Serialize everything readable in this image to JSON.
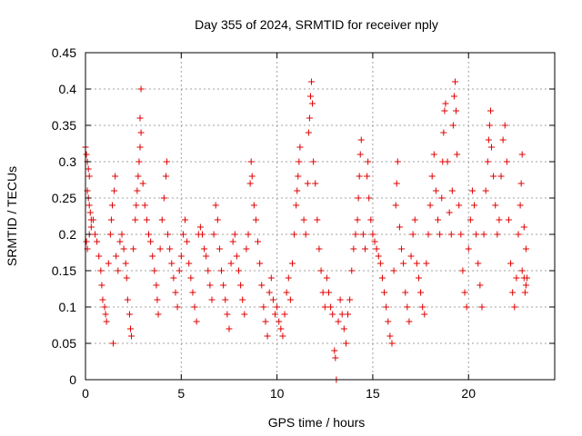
{
  "chart_data": {
    "type": "scatter",
    "title": "Day 355 of 2024, SRMTID for receiver nply",
    "xlabel": "GPS time / hours",
    "ylabel": "SRMTID / TECUs",
    "xlim": [
      0,
      24.5
    ],
    "ylim": [
      0,
      0.45
    ],
    "xticks": [
      0,
      5,
      10,
      15,
      20
    ],
    "xtick_labels": [
      "0",
      "5",
      "10",
      "15",
      "20"
    ],
    "yticks": [
      0,
      0.05,
      0.1,
      0.15,
      0.2,
      0.25,
      0.3,
      0.35,
      0.4,
      0.45
    ],
    "ytick_labels": [
      "0",
      "0.05",
      "0.1",
      "0.15",
      "0.2",
      "0.25",
      "0.3",
      "0.35",
      "0.4",
      "0.45"
    ],
    "grid": true,
    "legend": "none",
    "colors": {
      "marker": "#e00000",
      "grid": "#a0a0a0",
      "axis": "#000000"
    },
    "marker": "plus",
    "series": [
      {
        "name": "SRMTID",
        "points": [
          [
            0.0,
            0.32
          ],
          [
            0.05,
            0.31
          ],
          [
            0.1,
            0.3
          ],
          [
            0.15,
            0.29
          ],
          [
            0.2,
            0.28
          ],
          [
            0.1,
            0.26
          ],
          [
            0.15,
            0.25
          ],
          [
            0.2,
            0.24
          ],
          [
            0.25,
            0.23
          ],
          [
            0.3,
            0.22
          ],
          [
            0.05,
            0.19
          ],
          [
            0.1,
            0.18
          ],
          [
            0.2,
            0.2
          ],
          [
            0.3,
            0.21
          ],
          [
            0.4,
            0.22
          ],
          [
            0.5,
            0.2
          ],
          [
            0.6,
            0.19
          ],
          [
            0.7,
            0.17
          ],
          [
            0.8,
            0.15
          ],
          [
            0.85,
            0.13
          ],
          [
            0.9,
            0.11
          ],
          [
            1.0,
            0.1
          ],
          [
            1.05,
            0.09
          ],
          [
            1.1,
            0.08
          ],
          [
            1.2,
            0.16
          ],
          [
            1.3,
            0.2
          ],
          [
            1.35,
            0.22
          ],
          [
            1.4,
            0.24
          ],
          [
            1.5,
            0.26
          ],
          [
            1.55,
            0.28
          ],
          [
            1.6,
            0.17
          ],
          [
            1.7,
            0.15
          ],
          [
            1.45,
            0.05
          ],
          [
            1.8,
            0.19
          ],
          [
            1.9,
            0.2
          ],
          [
            2.0,
            0.18
          ],
          [
            2.1,
            0.16
          ],
          [
            2.15,
            0.14
          ],
          [
            2.2,
            0.11
          ],
          [
            2.3,
            0.09
          ],
          [
            2.35,
            0.07
          ],
          [
            2.4,
            0.06
          ],
          [
            2.5,
            0.18
          ],
          [
            2.6,
            0.22
          ],
          [
            2.65,
            0.24
          ],
          [
            2.7,
            0.26
          ],
          [
            2.75,
            0.28
          ],
          [
            2.8,
            0.3
          ],
          [
            2.85,
            0.32
          ],
          [
            2.9,
            0.34
          ],
          [
            2.85,
            0.36
          ],
          [
            2.9,
            0.4
          ],
          [
            3.0,
            0.27
          ],
          [
            3.1,
            0.24
          ],
          [
            3.2,
            0.22
          ],
          [
            3.3,
            0.2
          ],
          [
            3.4,
            0.19
          ],
          [
            3.5,
            0.17
          ],
          [
            3.6,
            0.15
          ],
          [
            3.7,
            0.13
          ],
          [
            3.75,
            0.11
          ],
          [
            3.8,
            0.09
          ],
          [
            3.9,
            0.18
          ],
          [
            4.0,
            0.22
          ],
          [
            4.1,
            0.25
          ],
          [
            4.2,
            0.28
          ],
          [
            4.25,
            0.3
          ],
          [
            4.3,
            0.2
          ],
          [
            4.4,
            0.18
          ],
          [
            4.5,
            0.16
          ],
          [
            4.6,
            0.14
          ],
          [
            4.7,
            0.12
          ],
          [
            4.8,
            0.1
          ],
          [
            4.9,
            0.15
          ],
          [
            5.0,
            0.17
          ],
          [
            5.1,
            0.2
          ],
          [
            5.2,
            0.22
          ],
          [
            5.3,
            0.19
          ],
          [
            5.4,
            0.16
          ],
          [
            5.5,
            0.14
          ],
          [
            5.6,
            0.12
          ],
          [
            5.7,
            0.1
          ],
          [
            5.8,
            0.08
          ],
          [
            5.9,
            0.2
          ],
          [
            6.0,
            0.21
          ],
          [
            6.1,
            0.2
          ],
          [
            6.2,
            0.18
          ],
          [
            6.3,
            0.17
          ],
          [
            6.4,
            0.15
          ],
          [
            6.5,
            0.13
          ],
          [
            6.6,
            0.11
          ],
          [
            6.7,
            0.2
          ],
          [
            6.8,
            0.24
          ],
          [
            6.9,
            0.22
          ],
          [
            7.0,
            0.18
          ],
          [
            7.1,
            0.15
          ],
          [
            7.2,
            0.13
          ],
          [
            7.3,
            0.11
          ],
          [
            7.4,
            0.09
          ],
          [
            7.5,
            0.07
          ],
          [
            7.6,
            0.16
          ],
          [
            7.7,
            0.19
          ],
          [
            7.8,
            0.2
          ],
          [
            7.9,
            0.17
          ],
          [
            8.0,
            0.15
          ],
          [
            8.1,
            0.13
          ],
          [
            8.2,
            0.11
          ],
          [
            8.3,
            0.09
          ],
          [
            8.4,
            0.18
          ],
          [
            8.5,
            0.2
          ],
          [
            8.6,
            0.27
          ],
          [
            8.65,
            0.3
          ],
          [
            8.7,
            0.28
          ],
          [
            8.8,
            0.24
          ],
          [
            8.9,
            0.22
          ],
          [
            9.0,
            0.19
          ],
          [
            9.1,
            0.16
          ],
          [
            9.2,
            0.13
          ],
          [
            9.3,
            0.1
          ],
          [
            9.4,
            0.08
          ],
          [
            9.5,
            0.06
          ],
          [
            9.6,
            0.12
          ],
          [
            9.7,
            0.14
          ],
          [
            9.8,
            0.11
          ],
          [
            9.9,
            0.09
          ],
          [
            10.0,
            0.1
          ],
          [
            10.1,
            0.08
          ],
          [
            10.2,
            0.07
          ],
          [
            10.3,
            0.06
          ],
          [
            10.4,
            0.09
          ],
          [
            10.5,
            0.12
          ],
          [
            10.6,
            0.14
          ],
          [
            10.7,
            0.11
          ],
          [
            10.8,
            0.16
          ],
          [
            10.9,
            0.2
          ],
          [
            11.0,
            0.24
          ],
          [
            11.05,
            0.26
          ],
          [
            11.1,
            0.28
          ],
          [
            11.15,
            0.3
          ],
          [
            11.2,
            0.32
          ],
          [
            11.4,
            0.22
          ],
          [
            11.5,
            0.2
          ],
          [
            11.6,
            0.27
          ],
          [
            11.65,
            0.34
          ],
          [
            11.7,
            0.36
          ],
          [
            11.75,
            0.39
          ],
          [
            11.8,
            0.41
          ],
          [
            11.85,
            0.38
          ],
          [
            11.9,
            0.3
          ],
          [
            12.0,
            0.27
          ],
          [
            12.1,
            0.22
          ],
          [
            12.2,
            0.18
          ],
          [
            12.3,
            0.15
          ],
          [
            12.4,
            0.12
          ],
          [
            12.5,
            0.1
          ],
          [
            12.6,
            0.14
          ],
          [
            12.7,
            0.12
          ],
          [
            12.8,
            0.1
          ],
          [
            12.9,
            0.09
          ],
          [
            13.0,
            0.04
          ],
          [
            13.05,
            0.03
          ],
          [
            13.1,
            0.0
          ],
          [
            13.2,
            0.08
          ],
          [
            13.3,
            0.11
          ],
          [
            13.4,
            0.09
          ],
          [
            13.5,
            0.07
          ],
          [
            13.6,
            0.05
          ],
          [
            13.7,
            0.09
          ],
          [
            13.8,
            0.11
          ],
          [
            13.9,
            0.15
          ],
          [
            14.0,
            0.18
          ],
          [
            14.1,
            0.2
          ],
          [
            14.2,
            0.22
          ],
          [
            14.25,
            0.25
          ],
          [
            14.3,
            0.28
          ],
          [
            14.35,
            0.31
          ],
          [
            14.4,
            0.33
          ],
          [
            14.5,
            0.2
          ],
          [
            14.6,
            0.18
          ],
          [
            14.7,
            0.28
          ],
          [
            14.75,
            0.3
          ],
          [
            14.8,
            0.25
          ],
          [
            14.9,
            0.22
          ],
          [
            15.0,
            0.2
          ],
          [
            15.1,
            0.19
          ],
          [
            15.2,
            0.18
          ],
          [
            15.3,
            0.17
          ],
          [
            15.4,
            0.16
          ],
          [
            15.5,
            0.14
          ],
          [
            15.6,
            0.12
          ],
          [
            15.7,
            0.1
          ],
          [
            15.8,
            0.08
          ],
          [
            15.9,
            0.06
          ],
          [
            16.0,
            0.05
          ],
          [
            16.1,
            0.15
          ],
          [
            16.2,
            0.24
          ],
          [
            16.25,
            0.27
          ],
          [
            16.3,
            0.3
          ],
          [
            16.4,
            0.21
          ],
          [
            16.5,
            0.18
          ],
          [
            16.6,
            0.16
          ],
          [
            16.7,
            0.12
          ],
          [
            16.8,
            0.1
          ],
          [
            16.9,
            0.08
          ],
          [
            17.0,
            0.17
          ],
          [
            17.1,
            0.2
          ],
          [
            17.2,
            0.22
          ],
          [
            17.3,
            0.16
          ],
          [
            17.4,
            0.14
          ],
          [
            17.5,
            0.12
          ],
          [
            17.6,
            0.1
          ],
          [
            17.7,
            0.09
          ],
          [
            17.8,
            0.16
          ],
          [
            17.9,
            0.2
          ],
          [
            18.0,
            0.24
          ],
          [
            18.1,
            0.28
          ],
          [
            18.2,
            0.31
          ],
          [
            18.3,
            0.26
          ],
          [
            18.4,
            0.22
          ],
          [
            18.5,
            0.2
          ],
          [
            18.6,
            0.25
          ],
          [
            18.65,
            0.3
          ],
          [
            18.7,
            0.34
          ],
          [
            18.75,
            0.37
          ],
          [
            18.8,
            0.38
          ],
          [
            18.9,
            0.3
          ],
          [
            19.0,
            0.23
          ],
          [
            19.1,
            0.2
          ],
          [
            19.15,
            0.26
          ],
          [
            19.2,
            0.35
          ],
          [
            19.25,
            0.39
          ],
          [
            19.3,
            0.41
          ],
          [
            19.35,
            0.37
          ],
          [
            19.4,
            0.31
          ],
          [
            19.5,
            0.24
          ],
          [
            19.6,
            0.2
          ],
          [
            19.7,
            0.15
          ],
          [
            19.8,
            0.12
          ],
          [
            19.9,
            0.1
          ],
          [
            20.0,
            0.18
          ],
          [
            20.1,
            0.22
          ],
          [
            20.2,
            0.26
          ],
          [
            20.3,
            0.24
          ],
          [
            20.4,
            0.2
          ],
          [
            20.5,
            0.16
          ],
          [
            20.6,
            0.13
          ],
          [
            20.7,
            0.1
          ],
          [
            20.8,
            0.2
          ],
          [
            20.9,
            0.26
          ],
          [
            21.0,
            0.3
          ],
          [
            21.05,
            0.33
          ],
          [
            21.1,
            0.35
          ],
          [
            21.15,
            0.37
          ],
          [
            21.2,
            0.32
          ],
          [
            21.3,
            0.28
          ],
          [
            21.4,
            0.24
          ],
          [
            21.5,
            0.2
          ],
          [
            21.6,
            0.22
          ],
          [
            21.7,
            0.28
          ],
          [
            21.8,
            0.33
          ],
          [
            21.9,
            0.35
          ],
          [
            22.0,
            0.3
          ],
          [
            22.1,
            0.22
          ],
          [
            22.2,
            0.16
          ],
          [
            22.3,
            0.12
          ],
          [
            22.4,
            0.1
          ],
          [
            22.5,
            0.14
          ],
          [
            22.6,
            0.2
          ],
          [
            22.7,
            0.24
          ],
          [
            22.75,
            0.27
          ],
          [
            22.8,
            0.31
          ],
          [
            22.9,
            0.21
          ],
          [
            23.0,
            0.18
          ],
          [
            22.8,
            0.15
          ],
          [
            22.9,
            0.14
          ],
          [
            23.0,
            0.13
          ],
          [
            22.95,
            0.12
          ],
          [
            23.05,
            0.14
          ]
        ]
      }
    ]
  }
}
